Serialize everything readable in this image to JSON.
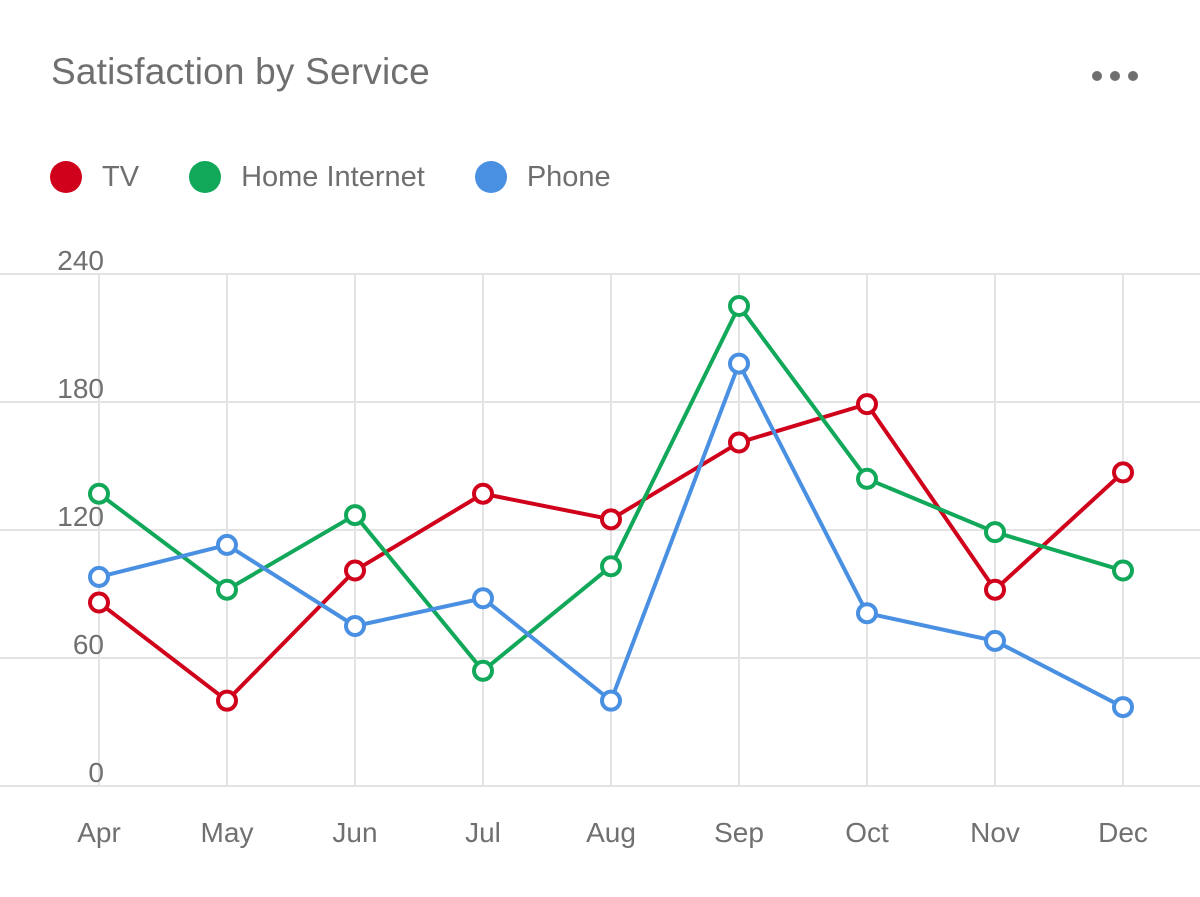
{
  "header": {
    "title": "Satisfaction by Service",
    "more_icon": "more-horizontal-icon"
  },
  "chart_data": {
    "type": "line",
    "title": "Satisfaction by Service",
    "xlabel": "",
    "ylabel": "",
    "categories": [
      "Apr",
      "May",
      "Jun",
      "Jul",
      "Aug",
      "Sep",
      "Oct",
      "Nov",
      "Dec"
    ],
    "y_ticks": [
      "0",
      "60",
      "120",
      "180",
      "240"
    ],
    "ylim": [
      0,
      240
    ],
    "grid": true,
    "legend_position": "top-left",
    "series": [
      {
        "name": "TV",
        "color": "#d0021b",
        "values": [
          86,
          40,
          101,
          137,
          125,
          161,
          179,
          92,
          147
        ]
      },
      {
        "name": "Home Internet",
        "color": "#12a85a",
        "values": [
          137,
          92,
          127,
          54,
          103,
          225,
          144,
          119,
          101
        ]
      },
      {
        "name": "Phone",
        "color": "#4a90e2",
        "values": [
          98,
          113,
          75,
          88,
          40,
          198,
          81,
          68,
          37
        ]
      }
    ]
  }
}
